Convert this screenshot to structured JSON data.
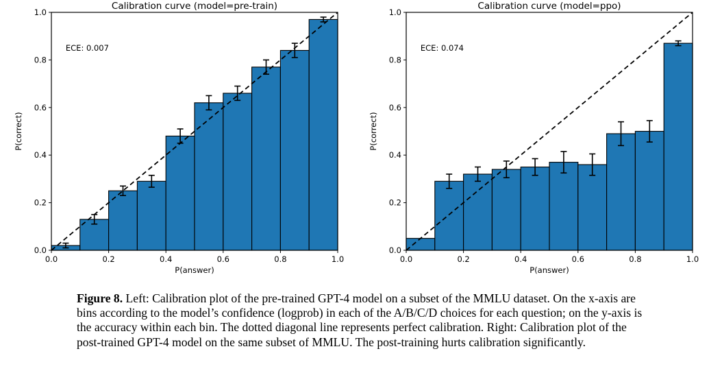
{
  "caption": {
    "label": "Figure 8.",
    "text": " Left: Calibration plot of the pre-trained GPT-4 model on a subset of the MMLU dataset. On the x-axis are bins according to the model’s confidence (logprob) in each of the A/B/C/D choices for each question; on the y-axis is the accuracy within each bin. The dotted diagonal line represents perfect calibration. Right: Calibration plot of the post-trained GPT-4 model on the same subset of MMLU. The post-training hurts calibration significantly."
  },
  "chart_data": [
    {
      "type": "bar",
      "name": "pre-train",
      "title": "Calibration curve (model=pre-train)",
      "annotation": "ECE: 0.007",
      "annotation_xy": [
        0.05,
        0.85
      ],
      "xlabel": "P(answer)",
      "ylabel": "P(correct)",
      "xlim": [
        0,
        1
      ],
      "ylim": [
        0,
        1
      ],
      "xtick_labels": [
        "0.0",
        "0.2",
        "0.4",
        "0.6",
        "0.8",
        "1.0"
      ],
      "ytick_labels": [
        "0.0",
        "0.2",
        "0.4",
        "0.6",
        "0.8",
        "1.0"
      ],
      "bin_edges": [
        0,
        0.1,
        0.2,
        0.3,
        0.4,
        0.5,
        0.6,
        0.7,
        0.8,
        0.9,
        1.0
      ],
      "values": [
        0.02,
        0.13,
        0.25,
        0.29,
        0.48,
        0.62,
        0.66,
        0.77,
        0.84,
        0.97
      ],
      "errors": [
        0.01,
        0.02,
        0.02,
        0.025,
        0.03,
        0.03,
        0.03,
        0.03,
        0.03,
        0.01
      ],
      "diagonal": "perfect-calibration",
      "diagonal_style": "dashed",
      "bar_color": "#1f77b4",
      "bar_edge_color": "#000000",
      "grid": false,
      "legend": null
    },
    {
      "type": "bar",
      "name": "ppo",
      "title": "Calibration curve (model=ppo)",
      "annotation": "ECE: 0.074",
      "annotation_xy": [
        0.05,
        0.85
      ],
      "xlabel": "P(answer)",
      "ylabel": "P(correct)",
      "xlim": [
        0,
        1
      ],
      "ylim": [
        0,
        1
      ],
      "xtick_labels": [
        "0.0",
        "0.2",
        "0.4",
        "0.6",
        "0.8",
        "1.0"
      ],
      "ytick_labels": [
        "0.0",
        "0.2",
        "0.4",
        "0.6",
        "0.8",
        "1.0"
      ],
      "bin_edges": [
        0,
        0.1,
        0.2,
        0.3,
        0.4,
        0.5,
        0.6,
        0.7,
        0.8,
        0.9,
        1.0
      ],
      "values": [
        0.05,
        0.29,
        0.32,
        0.34,
        0.35,
        0.37,
        0.36,
        0.49,
        0.5,
        0.87
      ],
      "errors": [
        0,
        0.03,
        0.03,
        0.035,
        0.035,
        0.045,
        0.045,
        0.05,
        0.045,
        0.01
      ],
      "diagonal": "perfect-calibration",
      "diagonal_style": "dashed",
      "bar_color": "#1f77b4",
      "bar_edge_color": "#000000",
      "grid": false,
      "legend": null
    }
  ],
  "colors": {
    "bar_fill": "#1f77b4",
    "axis": "#000000",
    "text": "#000000",
    "background": "#ffffff"
  }
}
